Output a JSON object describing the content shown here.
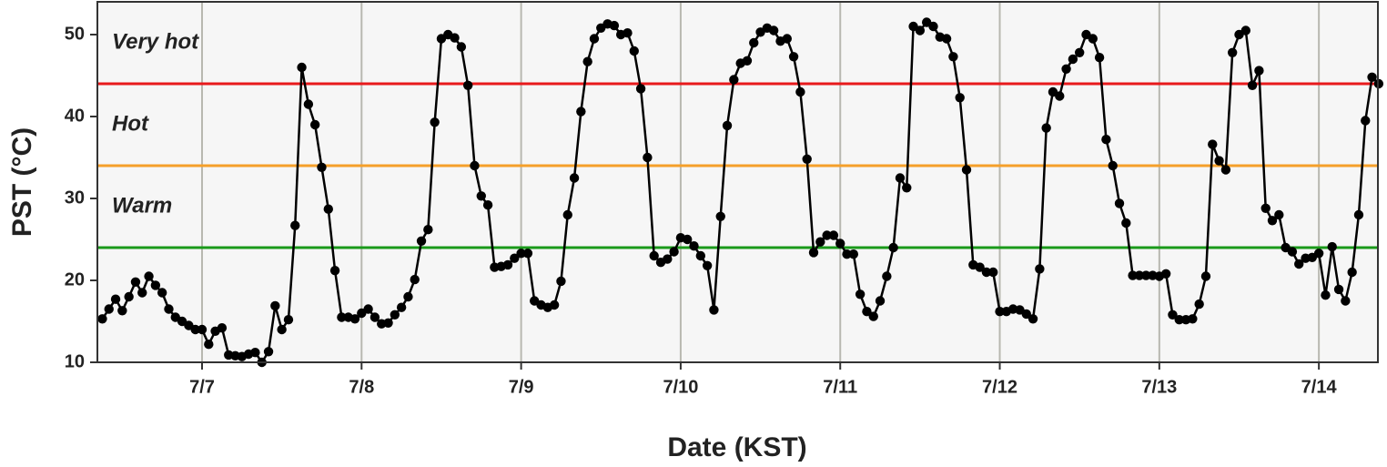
{
  "chart_data": {
    "type": "line",
    "xlabel": "Date (KST)",
    "ylabel": "PST (°C)",
    "color": "#000000",
    "xlim": [
      6.344,
      14.37
    ],
    "ylim": [
      10,
      54
    ],
    "yticks": [
      10,
      20,
      30,
      40,
      50
    ],
    "xticks": [
      {
        "value": 7,
        "label": "7/7"
      },
      {
        "value": 8,
        "label": "7/8"
      },
      {
        "value": 9,
        "label": "7/9"
      },
      {
        "value": 10,
        "label": "7/10"
      },
      {
        "value": 11,
        "label": "7/11"
      },
      {
        "value": 12,
        "label": "7/12"
      },
      {
        "value": 13,
        "label": "7/13"
      },
      {
        "value": 14,
        "label": "7/14"
      }
    ],
    "grid": true,
    "thresholds": [
      {
        "value": 44,
        "color": "#e8191c",
        "label": "Very hot"
      },
      {
        "value": 34,
        "color": "#f5a02a",
        "label": "Hot"
      },
      {
        "value": 24,
        "color": "#1a9a1a",
        "label": "Warm"
      }
    ],
    "x": [
      6.375,
      6.4167,
      6.4583,
      6.5,
      6.5417,
      6.5833,
      6.625,
      6.6667,
      6.7083,
      6.75,
      6.7917,
      6.8333,
      6.875,
      6.9167,
      6.9583,
      7,
      7.0417,
      7.0833,
      7.125,
      7.1667,
      7.2083,
      7.25,
      7.2917,
      7.3333,
      7.375,
      7.4167,
      7.4583,
      7.5,
      7.5417,
      7.5833,
      7.625,
      7.6667,
      7.7083,
      7.75,
      7.7917,
      7.8333,
      7.875,
      7.9167,
      7.9583,
      8,
      8.0417,
      8.0833,
      8.125,
      8.1667,
      8.2083,
      8.25,
      8.2917,
      8.3333,
      8.375,
      8.4167,
      8.4583,
      8.5,
      8.5417,
      8.5833,
      8.625,
      8.6667,
      8.7083,
      8.75,
      8.7917,
      8.8333,
      8.875,
      8.9167,
      8.9583,
      9,
      9.0417,
      9.0833,
      9.125,
      9.1667,
      9.2083,
      9.25,
      9.2917,
      9.3333,
      9.375,
      9.4167,
      9.4583,
      9.5,
      9.5417,
      9.5833,
      9.625,
      9.6667,
      9.7083,
      9.75,
      9.7917,
      9.8333,
      9.875,
      9.9167,
      9.9583,
      10,
      10.0417,
      10.0833,
      10.125,
      10.1667,
      10.2083,
      10.25,
      10.2917,
      10.3333,
      10.375,
      10.4167,
      10.4583,
      10.5,
      10.5417,
      10.5833,
      10.625,
      10.6667,
      10.7083,
      10.75,
      10.7917,
      10.8333,
      10.875,
      10.9167,
      10.9583,
      11,
      11.0417,
      11.0833,
      11.125,
      11.1667,
      11.2083,
      11.25,
      11.2917,
      11.3333,
      11.375,
      11.4167,
      11.4583,
      11.5,
      11.5417,
      11.5833,
      11.625,
      11.6667,
      11.7083,
      11.75,
      11.7917,
      11.8333,
      11.875,
      11.9167,
      11.9583,
      12,
      12.0417,
      12.0833,
      12.125,
      12.1667,
      12.2083,
      12.25,
      12.2917,
      12.3333,
      12.375,
      12.4167,
      12.4583,
      12.5,
      12.5417,
      12.5833,
      12.625,
      12.6667,
      12.7083,
      12.75,
      12.7917,
      12.8333,
      12.875,
      12.9167,
      12.9583,
      13,
      13.0417,
      13.0833,
      13.125,
      13.1667,
      13.2083,
      13.25,
      13.2917,
      13.3333,
      13.375,
      13.4167,
      13.4583,
      13.5,
      13.5417,
      13.5833,
      13.625,
      13.6667,
      13.7083,
      13.75,
      13.7917,
      13.8333,
      13.875,
      13.9167,
      13.9583,
      14,
      14.0417,
      14.0833,
      14.125,
      14.1667,
      14.2083,
      14.25,
      14.2917,
      14.3333,
      14.375
    ],
    "values": [
      15.3,
      16.5,
      17.7,
      16.3,
      18.0,
      19.8,
      18.5,
      20.5,
      19.4,
      18.5,
      16.5,
      15.5,
      15.0,
      14.5,
      14.0,
      14.0,
      12.2,
      13.8,
      14.2,
      10.9,
      10.8,
      10.7,
      11.0,
      11.2,
      10.0,
      11.3,
      16.9,
      14.0,
      15.2,
      26.7,
      46.0,
      41.5,
      39.0,
      33.8,
      28.7,
      21.2,
      15.5,
      15.5,
      15.3,
      16.0,
      16.5,
      15.5,
      14.7,
      14.8,
      15.8,
      16.7,
      18.0,
      20.1,
      24.8,
      26.2,
      39.3,
      49.5,
      50.0,
      49.6,
      48.5,
      43.8,
      34.0,
      30.3,
      29.2,
      21.6,
      21.7,
      21.9,
      22.7,
      23.3,
      23.3,
      17.5,
      17.0,
      16.7,
      17.0,
      19.9,
      28.0,
      32.5,
      40.6,
      46.7,
      49.5,
      50.8,
      51.3,
      51.1,
      50.0,
      50.2,
      48.0,
      43.4,
      35.0,
      23.0,
      22.2,
      22.6,
      23.5,
      25.2,
      25.0,
      24.2,
      23.0,
      21.8,
      16.4,
      27.8,
      38.9,
      44.5,
      46.5,
      46.8,
      49.0,
      50.3,
      50.8,
      50.5,
      49.2,
      49.5,
      47.3,
      43.0,
      34.8,
      23.4,
      24.7,
      25.5,
      25.5,
      24.5,
      23.2,
      23.2,
      18.3,
      16.2,
      15.6,
      17.5,
      20.5,
      24.0,
      32.5,
      31.3,
      51.0,
      50.5,
      51.5,
      51.0,
      49.7,
      49.5,
      47.3,
      42.3,
      33.5,
      21.9,
      21.6,
      21.0,
      21.0,
      16.2,
      16.2,
      16.5,
      16.4,
      15.9,
      15.3,
      21.4,
      38.6,
      43.0,
      42.5,
      45.8,
      47.0,
      47.8,
      50.0,
      49.5,
      47.2,
      37.2,
      34.0,
      29.4,
      27.0,
      20.6,
      20.6,
      20.6,
      20.6,
      20.5,
      20.8,
      15.8,
      15.2,
      15.2,
      15.3,
      17.1,
      20.5,
      36.6,
      34.6,
      33.5,
      47.8,
      50.0,
      50.5,
      43.8,
      45.6,
      28.8,
      27.3,
      28.0,
      24.0,
      23.5,
      22.0,
      22.7,
      22.8,
      23.3,
      18.2,
      24.1,
      18.9,
      17.5,
      21.0,
      28.0,
      39.5,
      44.8,
      44.0
    ]
  }
}
